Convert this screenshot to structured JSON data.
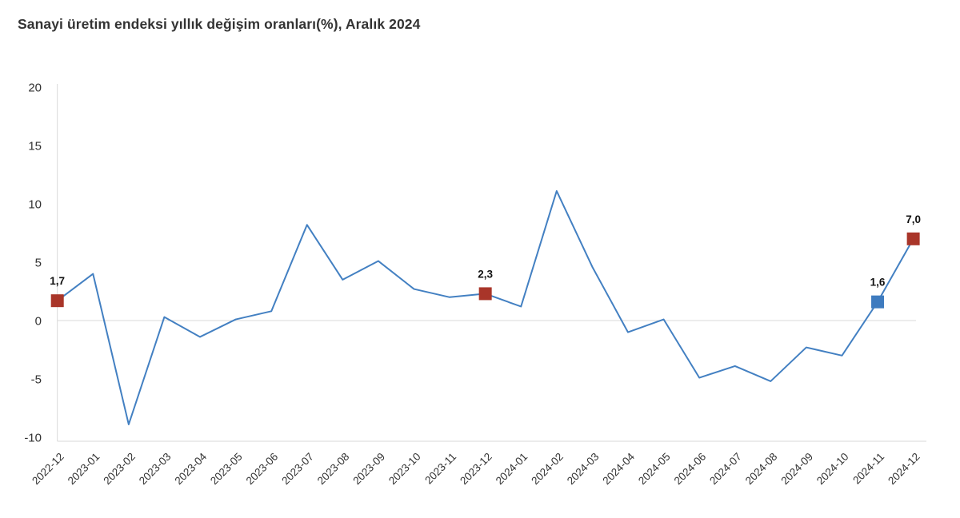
{
  "chart_data": {
    "type": "line",
    "title": "Sanayi üretim endeksi yıllık değişim oranları(%), Aralık 2024",
    "xlabel": "",
    "ylabel": "",
    "ylim": [
      -10,
      20
    ],
    "yticks": [
      20,
      15,
      10,
      5,
      0,
      -5,
      -10
    ],
    "grid": "zero-line-only",
    "legend": "none",
    "line_color": "#4380C2",
    "zero_line_color": "#d9d9d9",
    "axis_line_color": "#d9d9d9",
    "x": [
      "2022-12",
      "2023-01",
      "2023-02",
      "2023-03",
      "2023-04",
      "2023-05",
      "2023-06",
      "2023-07",
      "2023-08",
      "2023-09",
      "2023-10",
      "2023-11",
      "2023-12",
      "2024-01",
      "2024-02",
      "2024-03",
      "2024-04",
      "2024-05",
      "2024-06",
      "2024-07",
      "2024-08",
      "2024-09",
      "2024-10",
      "2024-11",
      "2024-12"
    ],
    "values": [
      1.7,
      4.0,
      -8.9,
      0.3,
      -1.4,
      0.1,
      0.8,
      8.2,
      3.5,
      5.1,
      2.7,
      2.0,
      2.3,
      1.2,
      11.1,
      4.6,
      -1.0,
      0.1,
      -4.9,
      -3.9,
      -5.2,
      -2.3,
      -3.0,
      1.6,
      7.0
    ],
    "annotated_points": [
      {
        "index": 0,
        "label": "1,7",
        "marker_color": "#A93529"
      },
      {
        "index": 12,
        "label": "2,3",
        "marker_color": "#A93529"
      },
      {
        "index": 23,
        "label": "1,6",
        "marker_color": "#3E7BBF"
      },
      {
        "index": 24,
        "label": "7,0",
        "marker_color": "#A93529"
      }
    ]
  }
}
